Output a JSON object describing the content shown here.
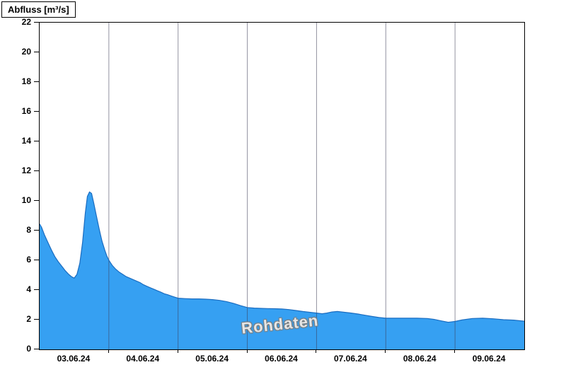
{
  "title": "Abfluss [m³/s]",
  "watermark": "Rohdaten",
  "colors": {
    "fill": "#36a0f2",
    "line": "#1a6cc0",
    "grid": "#3c3c55",
    "axis": "#000000",
    "background": "#ffffff"
  },
  "chart_data": {
    "type": "area",
    "title": "Abfluss [m³/s]",
    "ylabel": "Abfluss [m³/s]",
    "xlabel": "",
    "ylim": [
      0,
      22
    ],
    "yticks": [
      0,
      2,
      4,
      6,
      8,
      10,
      12,
      14,
      16,
      18,
      20,
      22
    ],
    "xlim_days": [
      0,
      7
    ],
    "x_gridlines_days": [
      1,
      2,
      3,
      4,
      5,
      6
    ],
    "xticks": [
      {
        "t": 0.5,
        "label": "03.06.24"
      },
      {
        "t": 1.5,
        "label": "04.06.24"
      },
      {
        "t": 2.5,
        "label": "05.06.24"
      },
      {
        "t": 3.5,
        "label": "06.06.24"
      },
      {
        "t": 4.5,
        "label": "07.06.24"
      },
      {
        "t": 5.5,
        "label": "08.06.24"
      },
      {
        "t": 6.5,
        "label": "09.06.24"
      }
    ],
    "legend": [],
    "grid": "vertical-day-separators-only",
    "annotations": [
      "Rohdaten"
    ],
    "series": [
      {
        "name": "Abfluss Rohdaten",
        "unit": "m³/s",
        "points": [
          [
            0.0,
            8.45
          ],
          [
            0.03,
            8.2
          ],
          [
            0.07,
            7.7
          ],
          [
            0.12,
            7.2
          ],
          [
            0.17,
            6.7
          ],
          [
            0.22,
            6.25
          ],
          [
            0.27,
            5.9
          ],
          [
            0.32,
            5.6
          ],
          [
            0.37,
            5.3
          ],
          [
            0.42,
            5.05
          ],
          [
            0.46,
            4.9
          ],
          [
            0.5,
            4.8
          ],
          [
            0.54,
            5.05
          ],
          [
            0.58,
            5.8
          ],
          [
            0.62,
            7.2
          ],
          [
            0.66,
            9.2
          ],
          [
            0.69,
            10.3
          ],
          [
            0.72,
            10.6
          ],
          [
            0.75,
            10.5
          ],
          [
            0.78,
            9.9
          ],
          [
            0.82,
            9.0
          ],
          [
            0.86,
            8.1
          ],
          [
            0.9,
            7.3
          ],
          [
            0.94,
            6.7
          ],
          [
            0.97,
            6.3
          ],
          [
            1.0,
            6.0
          ],
          [
            1.05,
            5.65
          ],
          [
            1.1,
            5.4
          ],
          [
            1.15,
            5.2
          ],
          [
            1.2,
            5.05
          ],
          [
            1.25,
            4.9
          ],
          [
            1.3,
            4.8
          ],
          [
            1.35,
            4.7
          ],
          [
            1.4,
            4.6
          ],
          [
            1.45,
            4.5
          ],
          [
            1.5,
            4.35
          ],
          [
            1.55,
            4.25
          ],
          [
            1.6,
            4.15
          ],
          [
            1.65,
            4.05
          ],
          [
            1.7,
            3.95
          ],
          [
            1.75,
            3.85
          ],
          [
            1.8,
            3.75
          ],
          [
            1.85,
            3.68
          ],
          [
            1.9,
            3.6
          ],
          [
            1.95,
            3.52
          ],
          [
            2.0,
            3.45
          ],
          [
            2.1,
            3.42
          ],
          [
            2.2,
            3.4
          ],
          [
            2.3,
            3.4
          ],
          [
            2.4,
            3.38
          ],
          [
            2.5,
            3.35
          ],
          [
            2.6,
            3.3
          ],
          [
            2.7,
            3.22
          ],
          [
            2.8,
            3.1
          ],
          [
            2.9,
            2.95
          ],
          [
            3.0,
            2.82
          ],
          [
            3.1,
            2.78
          ],
          [
            3.2,
            2.76
          ],
          [
            3.3,
            2.75
          ],
          [
            3.4,
            2.74
          ],
          [
            3.5,
            2.72
          ],
          [
            3.6,
            2.68
          ],
          [
            3.7,
            2.62
          ],
          [
            3.8,
            2.55
          ],
          [
            3.9,
            2.5
          ],
          [
            4.0,
            2.45
          ],
          [
            4.08,
            2.4
          ],
          [
            4.15,
            2.45
          ],
          [
            4.22,
            2.52
          ],
          [
            4.3,
            2.55
          ],
          [
            4.4,
            2.5
          ],
          [
            4.5,
            2.45
          ],
          [
            4.6,
            2.38
          ],
          [
            4.7,
            2.3
          ],
          [
            4.8,
            2.22
          ],
          [
            4.9,
            2.15
          ],
          [
            5.0,
            2.1
          ],
          [
            5.15,
            2.1
          ],
          [
            5.3,
            2.1
          ],
          [
            5.45,
            2.1
          ],
          [
            5.6,
            2.08
          ],
          [
            5.7,
            2.02
          ],
          [
            5.8,
            1.92
          ],
          [
            5.9,
            1.83
          ],
          [
            6.0,
            1.88
          ],
          [
            6.1,
            1.98
          ],
          [
            6.25,
            2.08
          ],
          [
            6.4,
            2.1
          ],
          [
            6.55,
            2.06
          ],
          [
            6.7,
            2.0
          ],
          [
            6.85,
            1.97
          ],
          [
            7.0,
            1.9
          ]
        ]
      }
    ]
  }
}
